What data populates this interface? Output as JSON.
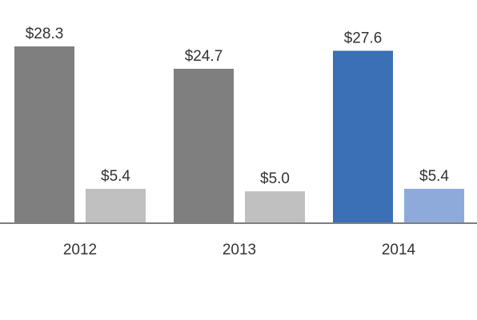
{
  "chart_data": {
    "type": "bar",
    "title": "",
    "xlabel": "",
    "ylabel": "",
    "categories": [
      "2012",
      "2013",
      "2014"
    ],
    "series": [
      {
        "values": [
          28.3,
          24.7,
          27.6
        ],
        "value_labels": [
          "$28.3",
          "$24.7",
          "$27.6"
        ],
        "colors": [
          "#7f7f7f",
          "#7f7f7f",
          "#3b6fb6"
        ]
      },
      {
        "values": [
          5.4,
          5.0,
          5.4
        ],
        "value_labels": [
          "$5.4",
          "$5.0",
          "$5.4"
        ],
        "colors": [
          "#c0c0c0",
          "#c0c0c0",
          "#8eaadb"
        ]
      }
    ],
    "ylim": [
      0,
      28.3
    ],
    "grid": false,
    "legend": "none",
    "axis_color": "#7f7f7f"
  }
}
